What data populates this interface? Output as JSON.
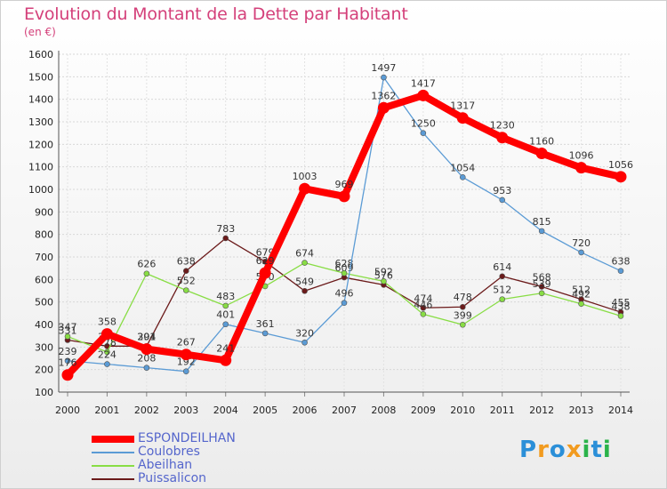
{
  "header": {
    "title": "Evolution du Montant de la Dette par Habitant",
    "unit": "(en €)"
  },
  "chart_data": {
    "type": "line",
    "x": [
      2000,
      2001,
      2002,
      2003,
      2004,
      2005,
      2006,
      2007,
      2008,
      2009,
      2010,
      2011,
      2012,
      2013,
      2014
    ],
    "ylim": [
      100,
      1600
    ],
    "yticks": [
      100,
      200,
      300,
      400,
      500,
      600,
      700,
      800,
      900,
      1000,
      1100,
      1200,
      1300,
      1400,
      1500,
      1600
    ],
    "grid": true,
    "legend_position": "bottom-left",
    "series": [
      {
        "name": "Puissalicon",
        "color": "#6b1a1a",
        "values": [
          331,
          304,
          304,
          638,
          783,
          679,
          549,
          609,
          576,
          474,
          478,
          614,
          568,
          512,
          455
        ]
      },
      {
        "name": "Abeilhan",
        "color": "#88dd44",
        "values": [
          347,
          278,
          626,
          552,
          483,
          570,
          674,
          628,
          592,
          446,
          399,
          512,
          539,
          492,
          438
        ]
      },
      {
        "name": "Coulobres",
        "color": "#5b9bd5",
        "values": [
          239,
          224,
          208,
          192,
          401,
          361,
          320,
          496,
          1497,
          1250,
          1054,
          953,
          815,
          720,
          638
        ]
      },
      {
        "name": "ESPONDEILHAN",
        "color": "#ff0000",
        "values": [
          176,
          358,
          291,
          267,
          241,
          629,
          1003,
          969,
          1362,
          1417,
          1317,
          1230,
          1160,
          1096,
          1056
        ]
      }
    ]
  },
  "legend": [
    {
      "name": "ESPONDEILHAN",
      "color": "#ff0000"
    },
    {
      "name": "Coulobres",
      "color": "#5b9bd5"
    },
    {
      "name": "Abeilhan",
      "color": "#88dd44"
    },
    {
      "name": "Puissalicon",
      "color": "#6b1a1a"
    }
  ],
  "logo": {
    "text": "Proxiti",
    "letters": [
      {
        "ch": "P",
        "color": "#2b8fd8"
      },
      {
        "ch": "r",
        "color": "#f29b1f"
      },
      {
        "ch": "o",
        "color": "#2b8fd8"
      },
      {
        "ch": "x",
        "color": "#f29b1f"
      },
      {
        "ch": "i",
        "color": "#2bb34a"
      },
      {
        "ch": "t",
        "color": "#2b8fd8"
      },
      {
        "ch": "i",
        "color": "#2bb34a"
      }
    ]
  }
}
